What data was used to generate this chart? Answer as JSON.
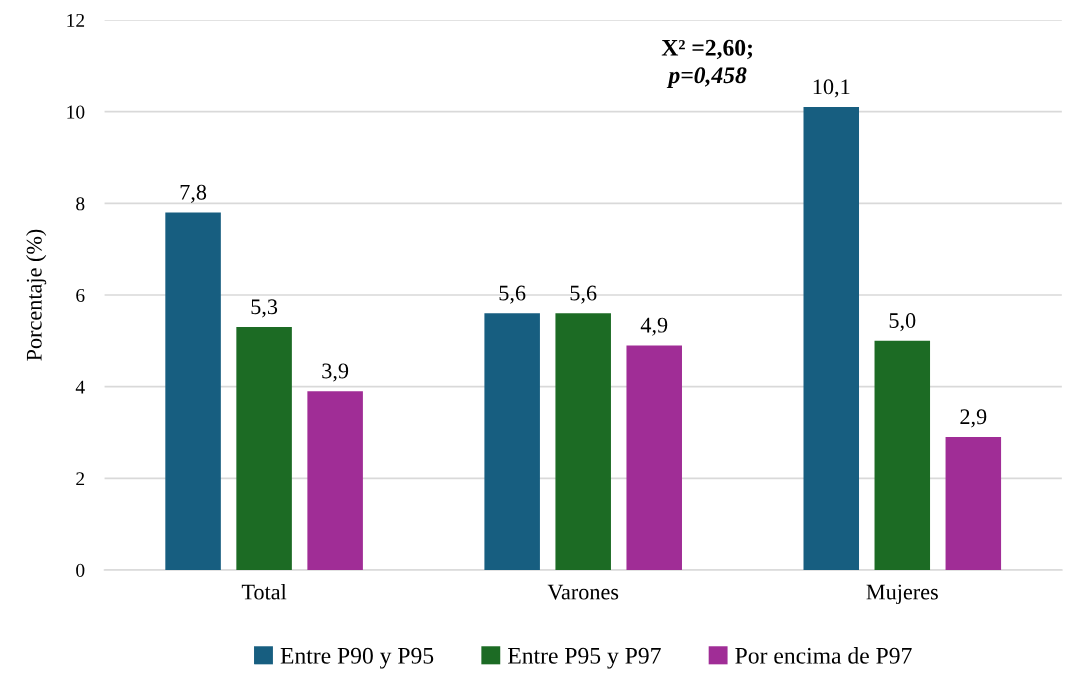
{
  "chart_data": {
    "type": "bar",
    "categories": [
      "Total",
      "Varones",
      "Mujeres"
    ],
    "series": [
      {
        "name": "Entre P90 y P95",
        "color": "#175e80",
        "values": [
          7.8,
          5.6,
          10.1
        ]
      },
      {
        "name": "Entre P95 y P97",
        "color": "#1c6b24",
        "values": [
          5.3,
          5.6,
          5.0
        ]
      },
      {
        "name": "Por encima de P97",
        "color": "#a02d96",
        "values": [
          3.9,
          4.9,
          2.9
        ]
      }
    ],
    "ylabel": "Porcentaje (%)",
    "ylim": [
      0,
      12
    ],
    "yticks": [
      0,
      2,
      4,
      6,
      8,
      10,
      12
    ],
    "value_labels": [
      [
        "7,8",
        "5,6",
        "10,1"
      ],
      [
        "5,3",
        "5,6",
        "5,0"
      ],
      [
        "3,9",
        "4,9",
        "2,9"
      ]
    ],
    "annotations": [
      "X² =2,60;",
      "p=0,458"
    ],
    "grid": "y",
    "legend": "bottom"
  }
}
